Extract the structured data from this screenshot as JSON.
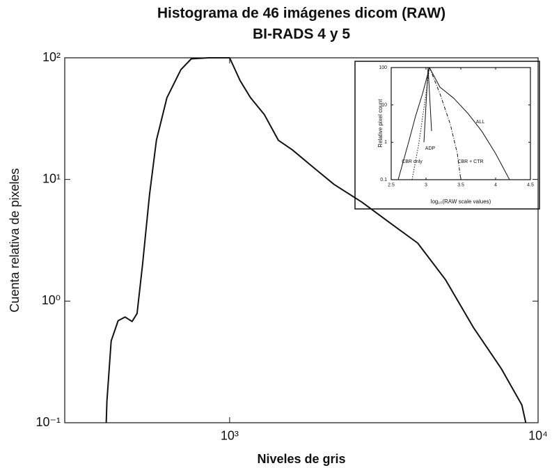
{
  "chart_data": [
    {
      "type": "line",
      "title": "Histograma de 46 imágenes dicom (RAW)",
      "subtitle": "BI-RADS 4 y 5",
      "xlabel": "Niveles de gris",
      "ylabel": "Cuenta relativa de pixeles",
      "xscale": "log",
      "yscale": "log",
      "xlim": [
        292,
        10000
      ],
      "ylim": [
        0.1,
        100
      ],
      "xticks": [
        {
          "value": 1000,
          "label": "10³"
        },
        {
          "value": 10000,
          "label": "10⁴"
        }
      ],
      "yticks": [
        {
          "value": 0.1,
          "label": "10⁻¹"
        },
        {
          "value": 1,
          "label": "10⁰"
        },
        {
          "value": 10,
          "label": "10¹"
        },
        {
          "value": 100,
          "label": "10²"
        }
      ],
      "color": "#111111",
      "x": [
        398,
        400,
        413,
        435,
        458,
        483,
        501,
        522,
        550,
        579,
        626,
        695,
        751,
        856,
        949,
        1000,
        1081,
        1169,
        1297,
        1439,
        1597,
        1866,
        2180,
        2686,
        3307,
        4070,
        5010,
        6160,
        7590,
        8860,
        9120
      ],
      "values": [
        0.1,
        0.15,
        0.47,
        0.69,
        0.74,
        0.68,
        0.79,
        2.0,
        7.5,
        21,
        47,
        80,
        98,
        100,
        100,
        100,
        65,
        47,
        34,
        21,
        17.5,
        12.6,
        9.1,
        6.5,
        4.4,
        3.0,
        1.5,
        0.61,
        0.28,
        0.14,
        0.1
      ]
    },
    {
      "type": "line",
      "xlabel": "log₁₀(RAW scale values)",
      "ylabel": "Relative pixel count",
      "xscale": "linear",
      "yscale": "log",
      "xlim": [
        2.5,
        4.5
      ],
      "ylim": [
        0.1,
        100
      ],
      "xticks": [
        2.5,
        3,
        3.5,
        4,
        4.5
      ],
      "yticks": [
        0.1,
        1,
        10,
        100
      ],
      "series": [
        {
          "name": "ALL",
          "color": "#111111",
          "linestyle": "solid",
          "x": [
            2.6,
            2.75,
            2.85,
            2.95,
            3.05,
            3.2,
            3.4,
            3.6,
            3.8,
            4.0,
            4.2
          ],
          "values": [
            0.1,
            1,
            5,
            20,
            100,
            30,
            15,
            6,
            2,
            0.5,
            0.1
          ]
        },
        {
          "name": "ADP",
          "color": "#111111",
          "linestyle": "solid",
          "x": [
            2.97,
            3.03,
            3.08
          ],
          "values": [
            1,
            100,
            2
          ]
        },
        {
          "name": "CBR only",
          "color": "#111111",
          "linestyle": "dotted",
          "x": [
            2.8,
            2.9,
            3.0,
            3.05
          ],
          "values": [
            0.1,
            1,
            20,
            100
          ]
        },
        {
          "name": "CBR + CTR",
          "color": "#111111",
          "linestyle": "dashdot",
          "x": [
            3.05,
            3.2,
            3.35,
            3.45,
            3.5
          ],
          "values": [
            100,
            20,
            3,
            0.5,
            0.1
          ]
        }
      ]
    }
  ]
}
